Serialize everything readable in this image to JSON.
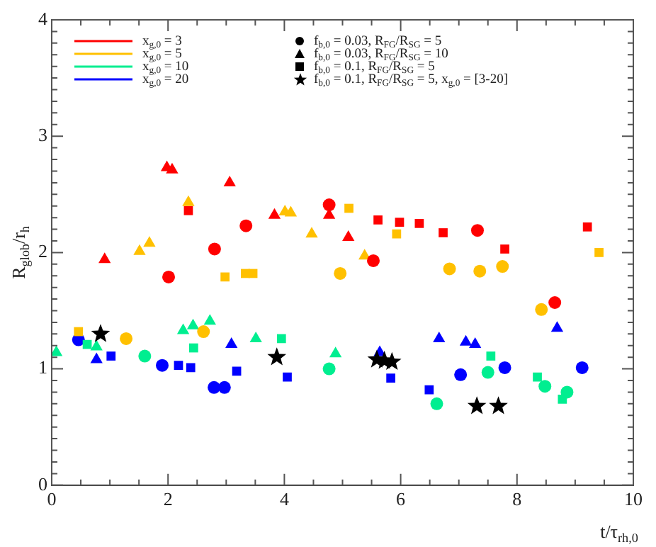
{
  "chart_data": {
    "type": "scatter",
    "xlabel": "t/τ$_{rh,0}$",
    "ylabel": "R$_{glob}$/r$_{h}$",
    "xlim": [
      0,
      10
    ],
    "ylim": [
      0,
      4
    ],
    "xticks": [
      0,
      {
        "value": 0.5,
        "label": null
      },
      {
        "value": 1,
        "label": null
      },
      {
        "value": 1.5,
        "label": null
      },
      2,
      {
        "value": 2.5,
        "label": null
      },
      {
        "value": 3,
        "label": null
      },
      {
        "value": 3.5,
        "label": null
      },
      4,
      {
        "value": 4.5,
        "label": null
      },
      {
        "value": 5,
        "label": null
      },
      {
        "value": 5.5,
        "label": null
      },
      6,
      {
        "value": 6.5,
        "label": null
      },
      {
        "value": 7,
        "label": null
      },
      {
        "value": 7.5,
        "label": null
      },
      8,
      {
        "value": 8.5,
        "label": null
      },
      {
        "value": 9,
        "label": null
      },
      {
        "value": 9.5,
        "label": null
      },
      10
    ],
    "yticks": [
      0,
      {
        "value": 0.1,
        "label": null
      },
      {
        "value": 0.2,
        "label": null
      },
      {
        "value": 0.3,
        "label": null
      },
      {
        "value": 0.4,
        "label": null
      },
      {
        "value": 0.5,
        "label": null
      },
      {
        "value": 0.6,
        "label": null
      },
      {
        "value": 0.7,
        "label": null
      },
      {
        "value": 0.8,
        "label": null
      },
      {
        "value": 0.9,
        "label": null
      },
      1,
      {
        "value": 1.1,
        "label": null
      },
      {
        "value": 1.2,
        "label": null
      },
      {
        "value": 1.3,
        "label": null
      },
      {
        "value": 1.4,
        "label": null
      },
      {
        "value": 1.5,
        "label": null
      },
      {
        "value": 1.6,
        "label": null
      },
      {
        "value": 1.7,
        "label": null
      },
      {
        "value": 1.8,
        "label": null
      },
      {
        "value": 1.9,
        "label": null
      },
      2,
      {
        "value": 2.1,
        "label": null
      },
      {
        "value": 2.2,
        "label": null
      },
      {
        "value": 2.3,
        "label": null
      },
      {
        "value": 2.4,
        "label": null
      },
      {
        "value": 2.5,
        "label": null
      },
      {
        "value": 2.6,
        "label": null
      },
      {
        "value": 2.7,
        "label": null
      },
      {
        "value": 2.8,
        "label": null
      },
      {
        "value": 2.9,
        "label": null
      },
      3,
      {
        "value": 3.1,
        "label": null
      },
      {
        "value": 3.2,
        "label": null
      },
      {
        "value": 3.3,
        "label": null
      },
      {
        "value": 3.4,
        "label": null
      },
      {
        "value": 3.5,
        "label": null
      },
      {
        "value": 3.6,
        "label": null
      },
      {
        "value": 3.7,
        "label": null
      },
      {
        "value": 3.8,
        "label": null
      },
      {
        "value": 3.9,
        "label": null
      },
      4
    ],
    "grid": false,
    "legend": "top",
    "series": [
      {
        "type": "line",
        "name": "x$_{g,0}$ = 3",
        "color": "#ff0000"
      },
      {
        "type": "line",
        "name": "x$_{g,0}$ = 5",
        "color": "#ffc000"
      },
      {
        "type": "line",
        "name": "x$_{g,0}$ = 10",
        "color": "#00ee90"
      },
      {
        "type": "line",
        "name": "x$_{g,0}$ = 20",
        "color": "#0000ff"
      },
      {
        "name": "f$_{b,0}$ = 0.03, R$_{FG}$/R$_{SG}$ = 5",
        "color": "#000000",
        "marker": "circle"
      },
      {
        "name": "f$_{b,0}$ = 0.03, R$_{FG}$/R$_{SG}$ = 10",
        "color": "#000000",
        "marker": "triangle"
      },
      {
        "name": "f$_{b,0}$ = 0.1, R$_{FG}$/R$_{SG}$ = 5",
        "color": "#000000",
        "marker": "square"
      },
      {
        "color": "#ff0000",
        "marker": "circle",
        "x": [
          2.01,
          2.8,
          3.34,
          4.77,
          5.53,
          7.32,
          8.65
        ],
        "values": [
          1.79,
          2.03,
          2.23,
          2.41,
          1.93,
          2.19,
          1.57
        ]
      },
      {
        "color": "#ff0000",
        "marker": "triangle",
        "x": [
          0.91,
          1.98,
          2.07,
          3.06,
          3.83,
          4.77,
          5.1
        ],
        "values": [
          1.94,
          2.73,
          2.71,
          2.6,
          2.32,
          2.32,
          2.13
        ]
      },
      {
        "color": "#ff0000",
        "marker": "square",
        "x": [
          2.35,
          5.61,
          5.98,
          6.32,
          6.73,
          7.79,
          9.21
        ],
        "values": [
          2.36,
          2.28,
          2.26,
          2.25,
          2.17,
          2.03,
          2.22
        ]
      },
      {
        "color": "#ffc000",
        "marker": "circle",
        "x": [
          1.28,
          2.61,
          4.96,
          6.84,
          7.36,
          7.75,
          8.42
        ],
        "values": [
          1.26,
          1.32,
          1.82,
          1.86,
          1.84,
          1.88,
          1.51
        ]
      },
      {
        "color": "#ffc000",
        "marker": "triangle",
        "x": [
          1.51,
          1.68,
          2.35,
          4.01,
          4.11,
          4.47,
          5.38
        ],
        "values": [
          2.01,
          2.08,
          2.43,
          2.35,
          2.34,
          2.16,
          1.97
        ]
      },
      {
        "color": "#ffc000",
        "marker": "square",
        "x": [
          0.46,
          2.98,
          3.33,
          3.46,
          5.11,
          5.93,
          9.41
        ],
        "values": [
          1.32,
          1.79,
          1.82,
          1.82,
          2.38,
          2.16,
          2.0
        ]
      },
      {
        "color": "#00ee90",
        "marker": "circle",
        "x": [
          1.6,
          4.77,
          6.62,
          7.5,
          8.48,
          8.86
        ],
        "values": [
          1.11,
          1.0,
          0.7,
          0.97,
          0.85,
          0.8
        ]
      },
      {
        "color": "#00ee90",
        "marker": "triangle",
        "x": [
          0.08,
          0.77,
          2.26,
          2.43,
          2.72,
          3.51,
          4.88
        ],
        "values": [
          1.14,
          1.19,
          1.33,
          1.37,
          1.41,
          1.26,
          1.13
        ]
      },
      {
        "color": "#00ee90",
        "marker": "square",
        "x": [
          0.61,
          2.44,
          3.95,
          7.55,
          8.35,
          8.78
        ],
        "values": [
          1.21,
          1.18,
          1.26,
          1.11,
          0.93,
          0.74
        ]
      },
      {
        "color": "#0000ff",
        "marker": "circle",
        "x": [
          0.46,
          1.9,
          2.79,
          2.97,
          7.03,
          7.79,
          9.12
        ],
        "values": [
          1.25,
          1.03,
          0.84,
          0.84,
          0.95,
          1.01,
          1.01
        ]
      },
      {
        "color": "#0000ff",
        "marker": "triangle",
        "x": [
          0.77,
          3.09,
          5.64,
          6.66,
          7.12,
          7.28,
          8.69
        ],
        "values": [
          1.08,
          1.21,
          1.14,
          1.26,
          1.23,
          1.21,
          1.35
        ]
      },
      {
        "color": "#0000ff",
        "marker": "square",
        "x": [
          1.02,
          2.18,
          2.39,
          3.18,
          4.05,
          5.83,
          6.49
        ],
        "values": [
          1.11,
          1.03,
          1.01,
          0.98,
          0.93,
          0.92,
          0.82
        ]
      },
      {
        "name": "f$_{b,0}$ = 0.1, R$_{FG}$/R$_{SG}$ = 5, x$_{g,0}$ = [3-20]",
        "color": "#000000",
        "marker": "star"
      },
      {
        "color": "#000000",
        "marker": "star",
        "x": [
          0.84,
          3.87,
          5.59,
          5.72,
          5.85,
          7.31,
          7.68
        ],
        "values": [
          1.3,
          1.1,
          1.08,
          1.07,
          1.06,
          0.68,
          0.68
        ]
      }
    ]
  }
}
